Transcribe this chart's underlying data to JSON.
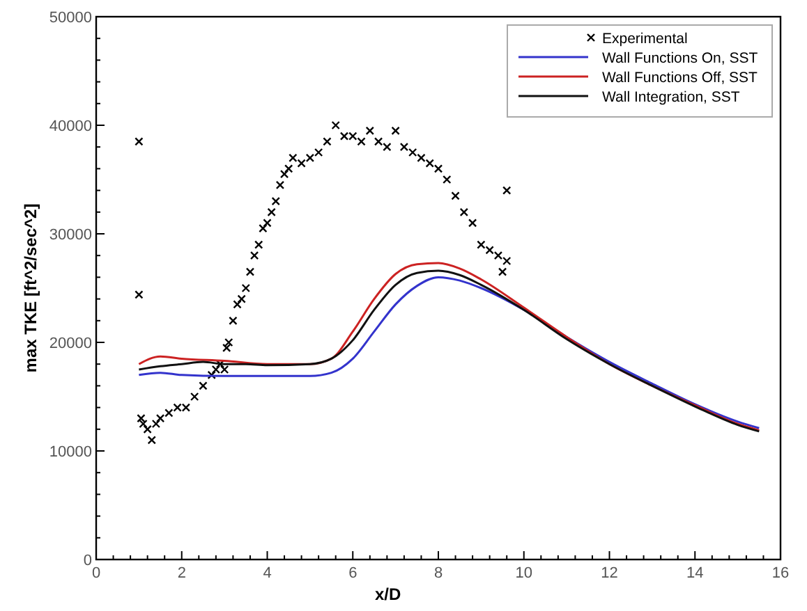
{
  "chart_data": {
    "type": "line",
    "xlabel": "x/D",
    "ylabel": "max TKE [ft^2/sec^2]",
    "xlim": [
      0,
      16
    ],
    "xticks": [
      0,
      2,
      4,
      6,
      8,
      10,
      12,
      14,
      16
    ],
    "ylim": [
      0,
      50000
    ],
    "yticks": [
      0,
      10000,
      20000,
      30000,
      40000,
      50000
    ],
    "grid": false,
    "legend": "top right",
    "line_style": "solid",
    "series": [
      {
        "name": "Experimental",
        "type": "scatter",
        "marker": "cross",
        "color": "#000000",
        "x": [
          1.0,
          1.0,
          1.05,
          1.1,
          1.2,
          1.3,
          1.4,
          1.5,
          1.7,
          1.9,
          2.1,
          2.3,
          2.5,
          2.7,
          2.8,
          2.9,
          3.0,
          3.05,
          3.1,
          3.2,
          3.3,
          3.4,
          3.5,
          3.6,
          3.7,
          3.8,
          3.9,
          4.0,
          4.1,
          4.2,
          4.3,
          4.4,
          4.5,
          4.6,
          4.8,
          5.0,
          5.2,
          5.4,
          5.6,
          5.8,
          6.0,
          6.2,
          6.4,
          6.6,
          6.8,
          7.0,
          7.2,
          7.4,
          7.6,
          7.8,
          8.0,
          8.2,
          8.4,
          8.6,
          8.8,
          9.0,
          9.2,
          9.4,
          9.5,
          9.6,
          9.6
        ],
        "values": [
          38500,
          24400,
          13000,
          12500,
          12000,
          11000,
          12500,
          13000,
          13500,
          14000,
          14000,
          15000,
          16000,
          17000,
          17500,
          18000,
          17500,
          19500,
          20000,
          22000,
          23500,
          24000,
          25000,
          26500,
          28000,
          29000,
          30500,
          31000,
          32000,
          33000,
          34500,
          35500,
          36000,
          37000,
          36500,
          37000,
          37500,
          38500,
          40000,
          39000,
          39000,
          38500,
          39500,
          38500,
          38000,
          39500,
          38000,
          37500,
          37000,
          36500,
          36000,
          35000,
          33500,
          32000,
          31000,
          29000,
          28500,
          28000,
          26500,
          27500,
          34000
        ]
      },
      {
        "name": "Wall Functions On, SST",
        "color": "#3333cc",
        "x": [
          1.0,
          1.5,
          2,
          3,
          4,
          5,
          5.5,
          6,
          6.5,
          7,
          7.5,
          8,
          8.5,
          9,
          10,
          11,
          12,
          13,
          14,
          15,
          15.5
        ],
        "values": [
          17000,
          17200,
          17000,
          16900,
          16900,
          16900,
          17200,
          18500,
          21000,
          23500,
          25200,
          26000,
          25700,
          25000,
          23000,
          20500,
          18200,
          16200,
          14300,
          12700,
          12100
        ]
      },
      {
        "name": "Wall Functions Off, SST",
        "color": "#cc2222",
        "x": [
          1.0,
          1.5,
          2,
          3,
          4,
          5,
          5.5,
          6,
          6.5,
          7,
          7.5,
          8,
          8.5,
          9,
          10,
          11,
          12,
          13,
          14,
          15,
          15.5
        ],
        "values": [
          18000,
          18700,
          18500,
          18300,
          18000,
          18000,
          18500,
          21000,
          24000,
          26300,
          27200,
          27300,
          26800,
          25800,
          23200,
          20500,
          18000,
          16000,
          14200,
          12500,
          11900
        ]
      },
      {
        "name": "Wall Integration, SST",
        "color": "#111111",
        "x": [
          1.0,
          1.5,
          2,
          2.5,
          3,
          3.5,
          4,
          5,
          5.5,
          6,
          6.5,
          7,
          7.5,
          8,
          8.5,
          9,
          10,
          11,
          12,
          13,
          14,
          15,
          15.5
        ],
        "values": [
          17500,
          17800,
          18000,
          18200,
          18000,
          18000,
          17900,
          18000,
          18500,
          20200,
          23000,
          25300,
          26400,
          26600,
          26200,
          25300,
          23000,
          20300,
          18000,
          16000,
          14100,
          12400,
          11800
        ]
      }
    ]
  }
}
